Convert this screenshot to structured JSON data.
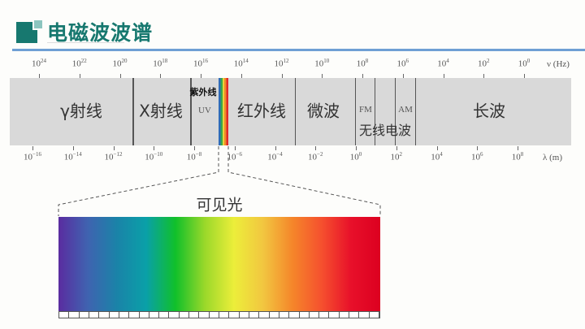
{
  "header": {
    "title": "电磁波波谱",
    "accent": "#17786f",
    "rule_color": "#6f9fd4"
  },
  "spectrum": {
    "frequency_axis": {
      "unit": "ν (Hz)",
      "ticks": [
        "24",
        "22",
        "20",
        "18",
        "16",
        "14",
        "12",
        "10",
        "8",
        "6",
        "4",
        "2",
        "0"
      ]
    },
    "wavelength_axis": {
      "unit": "λ (m)",
      "ticks": [
        "−16",
        "−14",
        "−12",
        "−10",
        "−8",
        "−6",
        "−4",
        "−2",
        "0",
        "2",
        "4",
        "6",
        "8"
      ]
    },
    "regions": {
      "gamma": "γ射线",
      "xray": "X射线",
      "uv_label": "紫外线",
      "uv": "UV",
      "infrared": "红外线",
      "microwave": "微波",
      "fm": "FM",
      "am": "AM",
      "radio": "无线电波",
      "long_wave": "长波"
    }
  },
  "visible": {
    "label": "可见光",
    "colors": [
      "#5a2ca0",
      "#3f63b0",
      "#1a83a8",
      "#0aa0a8",
      "#10c02a",
      "#9ad82a",
      "#ecee3a",
      "#f2c640",
      "#f5862a",
      "#f5502e",
      "#e8102a",
      "#dc0020"
    ]
  }
}
